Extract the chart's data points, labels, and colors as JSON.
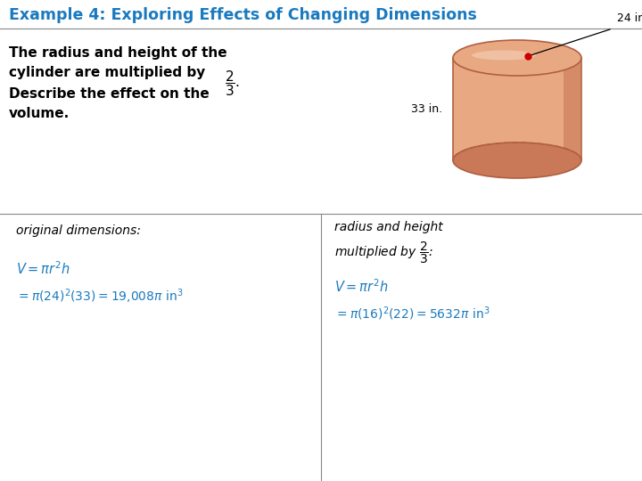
{
  "title": "Example 4: Exploring Effects of Changing Dimensions",
  "title_color": "#1a7abf",
  "title_fontsize": 12.5,
  "bg_color": "#ffffff",
  "cylinder_radius_label": "24 in.",
  "cylinder_height_label": "33 in.",
  "cyl_color": "#e8a882",
  "cyl_dark": "#c97858",
  "cyl_edge": "#b06040",
  "left_header": "original dimensions:",
  "right_header_line1": "radius and height",
  "right_header_line2": "multiplied by ",
  "formula_color": "#1a7abf",
  "separator_color": "#888888",
  "title_bar_color": "#ddeeff"
}
